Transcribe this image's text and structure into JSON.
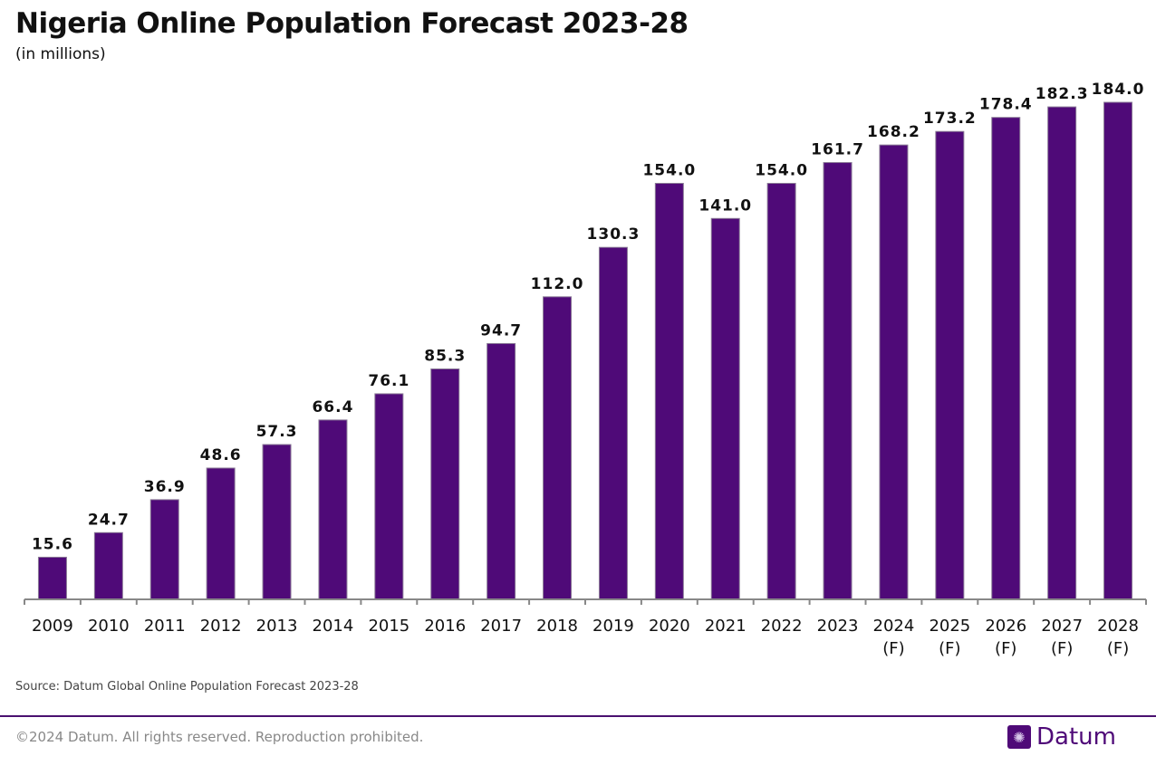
{
  "title": "Nigeria Online Population Forecast 2023-28",
  "subtitle": "(in millions)",
  "source": "Source: Datum Global Online Population Forecast 2023-28",
  "copyright": "©2024 Datum. All rights reserved. Reproduction prohibited.",
  "logo": {
    "text": "Datum",
    "icon": "globe-icon"
  },
  "colors": {
    "bar": "#4f0a78",
    "axis": "#888888",
    "rule": "#4a1070"
  },
  "chart_data": {
    "type": "bar",
    "title": "Nigeria Online Population Forecast 2023-28",
    "ylabel": "(in millions)",
    "categories": [
      "2009",
      "2010",
      "2011",
      "2012",
      "2013",
      "2014",
      "2015",
      "2016",
      "2017",
      "2018",
      "2019",
      "2020",
      "2021",
      "2022",
      "2023",
      "2024\n(F)",
      "2025\n(F)",
      "2026\n(F)",
      "2027\n(F)",
      "2028\n(F)"
    ],
    "values": [
      15.6,
      24.7,
      36.9,
      48.6,
      57.3,
      66.4,
      76.1,
      85.3,
      94.7,
      112.0,
      130.3,
      154.0,
      141.0,
      154.0,
      161.7,
      168.2,
      173.2,
      178.4,
      182.3,
      184.0
    ],
    "data_labels": [
      "15.6",
      "24.7",
      "36.9",
      "48.6",
      "57.3",
      "66.4",
      "76.1",
      "85.3",
      "94.7",
      "112.0",
      "130.3",
      "154.0",
      "141.0",
      "154.0",
      "161.7",
      "168.2",
      "173.2",
      "178.4",
      "182.3",
      "184.0"
    ],
    "ylim": [
      0,
      184
    ],
    "grid": false,
    "legend": "none"
  }
}
